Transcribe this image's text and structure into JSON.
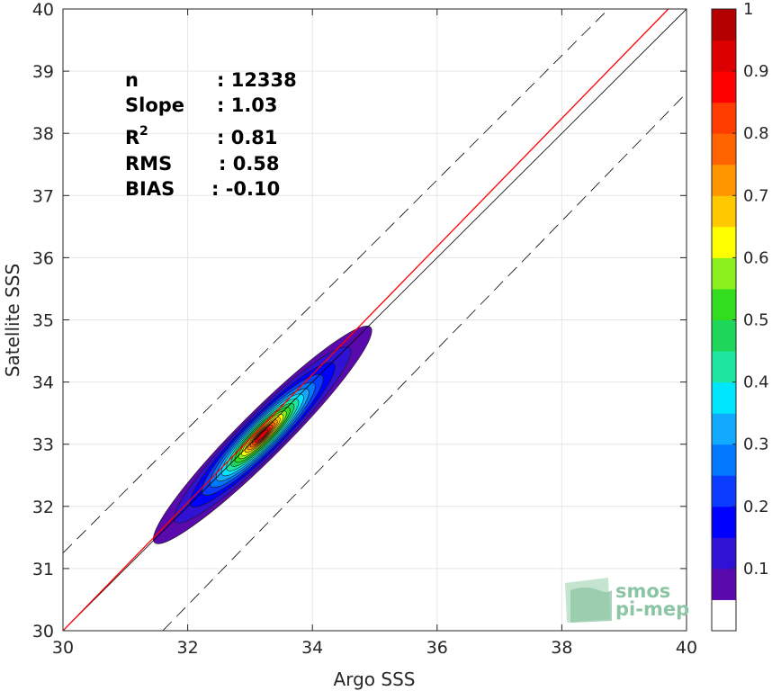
{
  "chart_data": {
    "type": "scatter-density-contour",
    "xlabel": "Argo SSS",
    "ylabel": "Satellite SSS",
    "xlim": [
      30,
      40
    ],
    "ylim": [
      30,
      40
    ],
    "xticks": [
      "30",
      "32",
      "34",
      "36",
      "38",
      "40"
    ],
    "yticks": [
      "30",
      "31",
      "32",
      "33",
      "34",
      "35",
      "36",
      "37",
      "38",
      "39",
      "40"
    ],
    "grid": true,
    "stats": [
      {
        "label": "n",
        "value": ": 12338"
      },
      {
        "label": "Slope",
        "value": ": 1.03"
      },
      {
        "label": "R",
        "sup": "2",
        "value": ": 0.81"
      },
      {
        "label": "RMS",
        "value": ": 0.58"
      },
      {
        "label": "BIAS",
        "value": ": -0.10"
      }
    ],
    "reference_lines": [
      {
        "name": "identity",
        "color": "#000000",
        "style": "solid",
        "x": [
          30,
          40
        ],
        "y": [
          30,
          40
        ]
      },
      {
        "name": "regression",
        "color": "#ff0000",
        "style": "solid",
        "x": [
          30,
          40
        ],
        "y": [
          30,
          40.3
        ]
      },
      {
        "name": "upper-bound",
        "color": "#000000",
        "style": "dashed",
        "x": [
          30,
          38.75
        ],
        "y": [
          31.25,
          40
        ]
      },
      {
        "name": "lower-bound",
        "color": "#000000",
        "style": "dashed",
        "x": [
          31.6,
          40
        ],
        "y": [
          30,
          38.65
        ]
      }
    ],
    "density_center": {
      "x": 33.2,
      "y": 33.15
    },
    "contour_levels": [
      {
        "level": 0.05,
        "color": "#5a0aac",
        "rx": 2.45,
        "ry": 0.37
      },
      {
        "level": 0.1,
        "color": "#2f12d4",
        "rx": 1.98,
        "ry": 0.33
      },
      {
        "level": 0.15,
        "color": "#0000ff",
        "rx": 1.62,
        "ry": 0.295
      },
      {
        "level": 0.2,
        "color": "#0a3cff",
        "rx": 1.35,
        "ry": 0.265
      },
      {
        "level": 0.25,
        "color": "#0078ff",
        "rx": 1.17,
        "ry": 0.24
      },
      {
        "level": 0.3,
        "color": "#12aaff",
        "rx": 1.03,
        "ry": 0.215
      },
      {
        "level": 0.35,
        "color": "#00e6ff",
        "rx": 0.91,
        "ry": 0.195
      },
      {
        "level": 0.4,
        "color": "#1ee6a0",
        "rx": 0.8,
        "ry": 0.175
      },
      {
        "level": 0.45,
        "color": "#1ed75a",
        "rx": 0.7,
        "ry": 0.155
      },
      {
        "level": 0.5,
        "color": "#32dc1e",
        "rx": 0.61,
        "ry": 0.138
      },
      {
        "level": 0.55,
        "color": "#8cf01e",
        "rx": 0.53,
        "ry": 0.12
      },
      {
        "level": 0.6,
        "color": "#ffff00",
        "rx": 0.46,
        "ry": 0.105
      },
      {
        "level": 0.65,
        "color": "#ffc800",
        "rx": 0.39,
        "ry": 0.09
      },
      {
        "level": 0.7,
        "color": "#ff9600",
        "rx": 0.33,
        "ry": 0.077
      },
      {
        "level": 0.75,
        "color": "#ff6400",
        "rx": 0.27,
        "ry": 0.065
      },
      {
        "level": 0.8,
        "color": "#ff3c00",
        "rx": 0.22,
        "ry": 0.054
      },
      {
        "level": 0.85,
        "color": "#ff0000",
        "rx": 0.17,
        "ry": 0.043
      },
      {
        "level": 0.9,
        "color": "#dc0000",
        "rx": 0.12,
        "ry": 0.032
      }
    ],
    "colorbar": {
      "range": [
        0,
        1
      ],
      "ticks": [
        "0.1",
        "0.2",
        "0.3",
        "0.4",
        "0.5",
        "0.6",
        "0.7",
        "0.8",
        "0.9",
        "1"
      ],
      "colors": [
        "#ffffff",
        "#5a0aac",
        "#2f12d4",
        "#0000ff",
        "#0a3cff",
        "#0078ff",
        "#12aaff",
        "#00e6ff",
        "#1ee6a0",
        "#1ed75a",
        "#32dc1e",
        "#8cf01e",
        "#ffff00",
        "#ffc800",
        "#ff9600",
        "#ff6400",
        "#ff3c00",
        "#ff0000",
        "#dc0000",
        "#b40000",
        "#8c0000"
      ]
    }
  },
  "logo": {
    "line1": "smos",
    "line2": "pi-mep"
  }
}
